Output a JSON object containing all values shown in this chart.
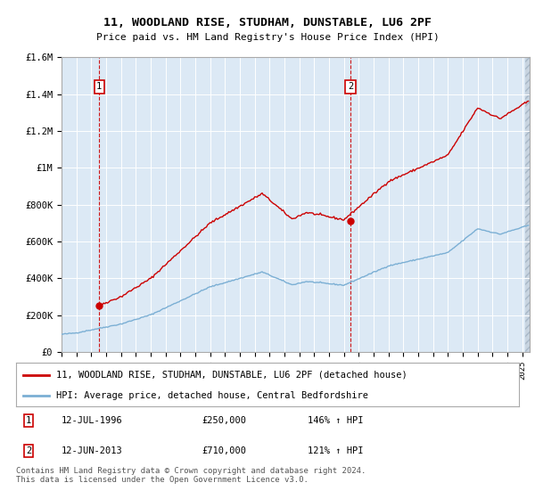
{
  "title": "11, WOODLAND RISE, STUDHAM, DUNSTABLE, LU6 2PF",
  "subtitle": "Price paid vs. HM Land Registry's House Price Index (HPI)",
  "legend_line1": "11, WOODLAND RISE, STUDHAM, DUNSTABLE, LU6 2PF (detached house)",
  "legend_line2": "HPI: Average price, detached house, Central Bedfordshire",
  "footer": "Contains HM Land Registry data © Crown copyright and database right 2024.\nThis data is licensed under the Open Government Licence v3.0.",
  "annotation1_date": "12-JUL-1996",
  "annotation1_price": "£250,000",
  "annotation1_hpi": "146% ↑ HPI",
  "annotation2_date": "12-JUN-2013",
  "annotation2_price": "£710,000",
  "annotation2_hpi": "121% ↑ HPI",
  "house_color": "#cc0000",
  "hpi_color": "#7bafd4",
  "background_color": "#dce9f5",
  "ylim": [
    0,
    1600000
  ],
  "yticks": [
    0,
    200000,
    400000,
    600000,
    800000,
    1000000,
    1200000,
    1400000,
    1600000
  ],
  "ytick_labels": [
    "£0",
    "£200K",
    "£400K",
    "£600K",
    "£800K",
    "£1M",
    "£1.2M",
    "£1.4M",
    "£1.6M"
  ],
  "sale1_year": 1996.54,
  "sale1_y": 250000,
  "sale2_year": 2013.45,
  "sale2_y": 710000,
  "xmin": 1994.0,
  "xmax": 2025.5
}
